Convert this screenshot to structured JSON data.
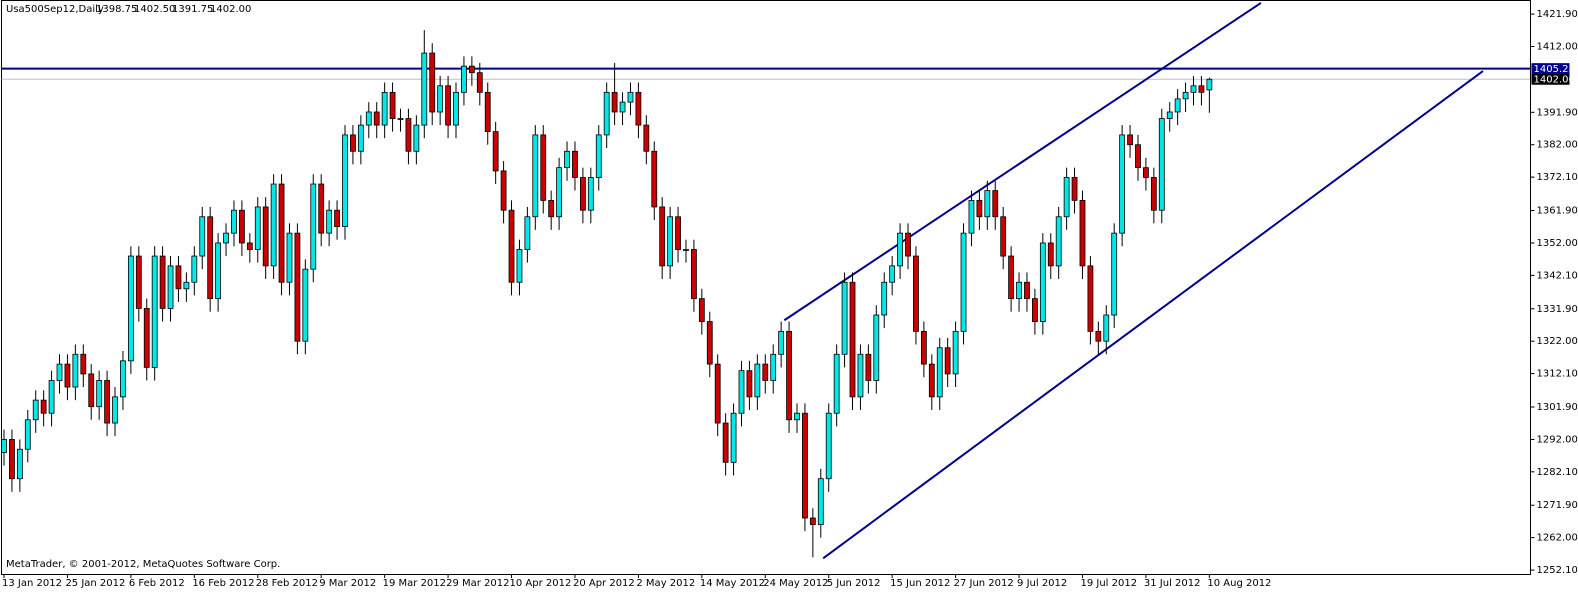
{
  "chart_data": {
    "type": "candlestick",
    "symbol": "Usa500Sep12,Daily",
    "header_prices": [
      "1398.75",
      "1402.50",
      "1391.75",
      "1402.00"
    ],
    "footer": "MetaTrader, © 2001-2012, MetaQuotes Software Corp.",
    "bull_color": "#00e8e8",
    "bear_color": "#cc0000",
    "categories": [
      "13 Jan 2012",
      null,
      null,
      null,
      null,
      null,
      null,
      null,
      "25 Jan 2012",
      null,
      null,
      null,
      null,
      null,
      null,
      null,
      "6 Feb 2012",
      null,
      null,
      null,
      null,
      null,
      null,
      null,
      "16 Feb 2012",
      null,
      null,
      null,
      null,
      null,
      null,
      null,
      "28 Feb 2012",
      null,
      null,
      null,
      null,
      null,
      null,
      null,
      "9 Mar 2012",
      null,
      null,
      null,
      null,
      null,
      null,
      null,
      "19 Mar 2012",
      null,
      null,
      null,
      null,
      null,
      null,
      null,
      "29 Mar 2012",
      null,
      null,
      null,
      null,
      null,
      null,
      null,
      "10 Apr 2012",
      null,
      null,
      null,
      null,
      null,
      null,
      null,
      "20 Apr 2012",
      null,
      null,
      null,
      null,
      null,
      null,
      null,
      "2 May 2012",
      null,
      null,
      null,
      null,
      null,
      null,
      null,
      "14 May 2012",
      null,
      null,
      null,
      null,
      null,
      null,
      null,
      "24 May 2012",
      null,
      null,
      null,
      null,
      null,
      null,
      null,
      "5 Jun 2012",
      null,
      null,
      null,
      null,
      null,
      null,
      null,
      "15 Jun 2012",
      null,
      null,
      null,
      null,
      null,
      null,
      null,
      "27 Jun 2012",
      null,
      null,
      null,
      null,
      null,
      null,
      null,
      "9 Jul 2012",
      null,
      null,
      null,
      null,
      null,
      null,
      null,
      "19 Jul 2012",
      null,
      null,
      null,
      null,
      null,
      null,
      null,
      "31 Jul 2012",
      null,
      null,
      null,
      null,
      null,
      null,
      null,
      "10 Aug 2012"
    ],
    "open": [
      1288,
      1292,
      1280,
      1289,
      1298,
      1304,
      1300,
      1310,
      1315,
      1308,
      1318,
      1312,
      1302,
      1310,
      1297,
      1305,
      1316,
      1348,
      1332,
      1314,
      1348,
      1332,
      1345,
      1338,
      1340,
      1348,
      1360,
      1335,
      1352,
      1355,
      1362,
      1352,
      1350,
      1363,
      1345,
      1370,
      1340,
      1355,
      1322,
      1344,
      1370,
      1355,
      1362,
      1357,
      1385,
      1380,
      1388,
      1392,
      1388,
      1398,
      1390,
      1390,
      1380,
      1388,
      1410,
      1392,
      1400,
      1388,
      1398,
      1406,
      1404,
      1398,
      1386,
      1374,
      1362,
      1340,
      1350,
      1360,
      1385,
      1365,
      1360,
      1375,
      1380,
      1372,
      1362,
      1372,
      1385,
      1398,
      1392,
      1395,
      1398,
      1388,
      1380,
      1363,
      1345,
      1360,
      1350,
      1350,
      1335,
      1328,
      1315,
      1297,
      1285,
      1300,
      1313,
      1305,
      1315,
      1310,
      1318,
      1325,
      1298,
      1300,
      1268,
      1266,
      1280,
      1300,
      1318,
      1340,
      1305,
      1318,
      1310,
      1330,
      1340,
      1345,
      1355,
      1348,
      1325,
      1315,
      1305,
      1320,
      1312,
      1325,
      1355,
      1365,
      1360,
      1368,
      1360,
      1348,
      1335,
      1340,
      1335,
      1328,
      1352,
      1345,
      1360,
      1372,
      1365,
      1345,
      1325,
      1322,
      1330,
      1355,
      1385,
      1382,
      1375,
      1372,
      1362,
      1390,
      1392,
      1396,
      1398,
      1400,
      1398.75
    ],
    "high": [
      1295,
      1295,
      1292,
      1301,
      1307,
      1307,
      1313,
      1318,
      1318,
      1321,
      1321,
      1315,
      1313,
      1313,
      1308,
      1319,
      1351,
      1351,
      1335,
      1351,
      1351,
      1348,
      1348,
      1343,
      1351,
      1363,
      1363,
      1355,
      1358,
      1365,
      1365,
      1355,
      1366,
      1366,
      1373,
      1373,
      1358,
      1358,
      1347,
      1373,
      1373,
      1365,
      1365,
      1388,
      1388,
      1391,
      1395,
      1395,
      1401,
      1401,
      1393,
      1393,
      1391,
      1417,
      1413,
      1403,
      1403,
      1401,
      1409,
      1409,
      1407,
      1401,
      1389,
      1377,
      1365,
      1353,
      1363,
      1388,
      1388,
      1368,
      1378,
      1383,
      1383,
      1375,
      1375,
      1388,
      1401,
      1407,
      1398,
      1401,
      1401,
      1391,
      1383,
      1366,
      1363,
      1363,
      1353,
      1353,
      1338,
      1331,
      1318,
      1300,
      1303,
      1316,
      1316,
      1318,
      1318,
      1321,
      1328,
      1328,
      1303,
      1303,
      1271,
      1283,
      1303,
      1321,
      1343,
      1343,
      1321,
      1321,
      1333,
      1343,
      1348,
      1358,
      1358,
      1351,
      1328,
      1318,
      1323,
      1323,
      1328,
      1358,
      1368,
      1368,
      1371,
      1371,
      1363,
      1351,
      1343,
      1343,
      1338,
      1355,
      1355,
      1363,
      1375,
      1375,
      1368,
      1348,
      1328,
      1333,
      1358,
      1388,
      1388,
      1385,
      1378,
      1375,
      1393,
      1395,
      1399,
      1401,
      1403,
      1403,
      1402.5
    ],
    "low": [
      1284,
      1276,
      1276,
      1285,
      1294,
      1296,
      1296,
      1306,
      1304,
      1304,
      1308,
      1298,
      1298,
      1293,
      1293,
      1301,
      1312,
      1328,
      1310,
      1310,
      1328,
      1328,
      1334,
      1334,
      1336,
      1344,
      1331,
      1331,
      1348,
      1351,
      1348,
      1346,
      1346,
      1341,
      1341,
      1336,
      1336,
      1318,
      1318,
      1340,
      1351,
      1351,
      1353,
      1353,
      1376,
      1376,
      1384,
      1384,
      1384,
      1386,
      1386,
      1376,
      1376,
      1384,
      1388,
      1388,
      1384,
      1384,
      1394,
      1400,
      1394,
      1382,
      1370,
      1358,
      1336,
      1336,
      1346,
      1356,
      1361,
      1356,
      1356,
      1371,
      1368,
      1358,
      1358,
      1368,
      1381,
      1388,
      1388,
      1391,
      1384,
      1376,
      1359,
      1341,
      1341,
      1346,
      1346,
      1331,
      1324,
      1311,
      1293,
      1281,
      1281,
      1296,
      1301,
      1301,
      1306,
      1306,
      1314,
      1294,
      1294,
      1264,
      1256,
      1262,
      1276,
      1296,
      1314,
      1301,
      1301,
      1306,
      1306,
      1326,
      1336,
      1341,
      1344,
      1321,
      1311,
      1301,
      1301,
      1308,
      1308,
      1321,
      1351,
      1356,
      1356,
      1356,
      1344,
      1331,
      1331,
      1331,
      1324,
      1324,
      1341,
      1341,
      1356,
      1361,
      1341,
      1321,
      1318,
      1318,
      1326,
      1351,
      1378,
      1371,
      1368,
      1358,
      1358,
      1386,
      1388,
      1392,
      1394,
      1394,
      1391.75
    ],
    "close": [
      1292,
      1280,
      1289,
      1298,
      1304,
      1300,
      1310,
      1315,
      1308,
      1318,
      1312,
      1302,
      1310,
      1297,
      1305,
      1316,
      1348,
      1332,
      1314,
      1348,
      1332,
      1345,
      1338,
      1340,
      1348,
      1360,
      1335,
      1352,
      1355,
      1362,
      1352,
      1350,
      1363,
      1345,
      1370,
      1340,
      1355,
      1322,
      1344,
      1370,
      1355,
      1362,
      1357,
      1385,
      1380,
      1388,
      1392,
      1388,
      1398,
      1390,
      1390,
      1380,
      1388,
      1410,
      1392,
      1400,
      1388,
      1398,
      1406,
      1404,
      1398,
      1386,
      1374,
      1362,
      1340,
      1350,
      1360,
      1385,
      1365,
      1360,
      1375,
      1380,
      1372,
      1362,
      1372,
      1385,
      1398,
      1392,
      1395,
      1398,
      1388,
      1380,
      1363,
      1345,
      1360,
      1350,
      1350,
      1335,
      1328,
      1315,
      1297,
      1285,
      1300,
      1313,
      1305,
      1315,
      1310,
      1318,
      1325,
      1298,
      1300,
      1268,
      1266,
      1280,
      1300,
      1318,
      1340,
      1305,
      1318,
      1310,
      1330,
      1340,
      1345,
      1355,
      1348,
      1325,
      1315,
      1305,
      1320,
      1312,
      1325,
      1355,
      1365,
      1360,
      1368,
      1360,
      1348,
      1335,
      1340,
      1335,
      1328,
      1352,
      1345,
      1360,
      1372,
      1365,
      1345,
      1325,
      1322,
      1330,
      1355,
      1385,
      1382,
      1375,
      1372,
      1362,
      1390,
      1392,
      1396,
      1398,
      1400,
      1398,
      1402
    ],
    "ylim": [
      1250.9,
      1426.2
    ],
    "yticks": [
      {
        "value": 1421.9,
        "label": "1421.90"
      },
      {
        "value": 1412,
        "label": "1412.00"
      },
      {
        "value": 1391.9,
        "label": "1391.90"
      },
      {
        "value": 1382,
        "label": "1382.00"
      },
      {
        "value": 1372.1,
        "label": "1372.10"
      },
      {
        "value": 1361.9,
        "label": "1361.90"
      },
      {
        "value": 1352,
        "label": "1352.00"
      },
      {
        "value": 1342.1,
        "label": "1342.10"
      },
      {
        "value": 1331.9,
        "label": "1331.90"
      },
      {
        "value": 1322,
        "label": "1322.00"
      },
      {
        "value": 1312.1,
        "label": "1312.10"
      },
      {
        "value": 1301.9,
        "label": "1301.90"
      },
      {
        "value": 1292,
        "label": "1292.00"
      },
      {
        "value": 1282.1,
        "label": "1282.10"
      },
      {
        "value": 1271.9,
        "label": "1271.90"
      },
      {
        "value": 1262,
        "label": "1262.00"
      },
      {
        "value": 1252.1,
        "label": "1252.10"
      }
    ],
    "hlines": [
      {
        "value": 1405.23,
        "label": "1405.23",
        "color": "#00008b"
      },
      {
        "value": 1402,
        "label": "1402.00",
        "color": "#c0c0c0"
      }
    ],
    "trendlines": [
      {
        "x": [
          98.4,
          158.5
        ],
        "y": [
          1328.4,
          1425.3
        ],
        "color": "#00008b"
      },
      {
        "x": [
          103.3,
          186.5
        ],
        "y": [
          1255.7,
          1404.5
        ],
        "color": "#00008b"
      }
    ]
  }
}
